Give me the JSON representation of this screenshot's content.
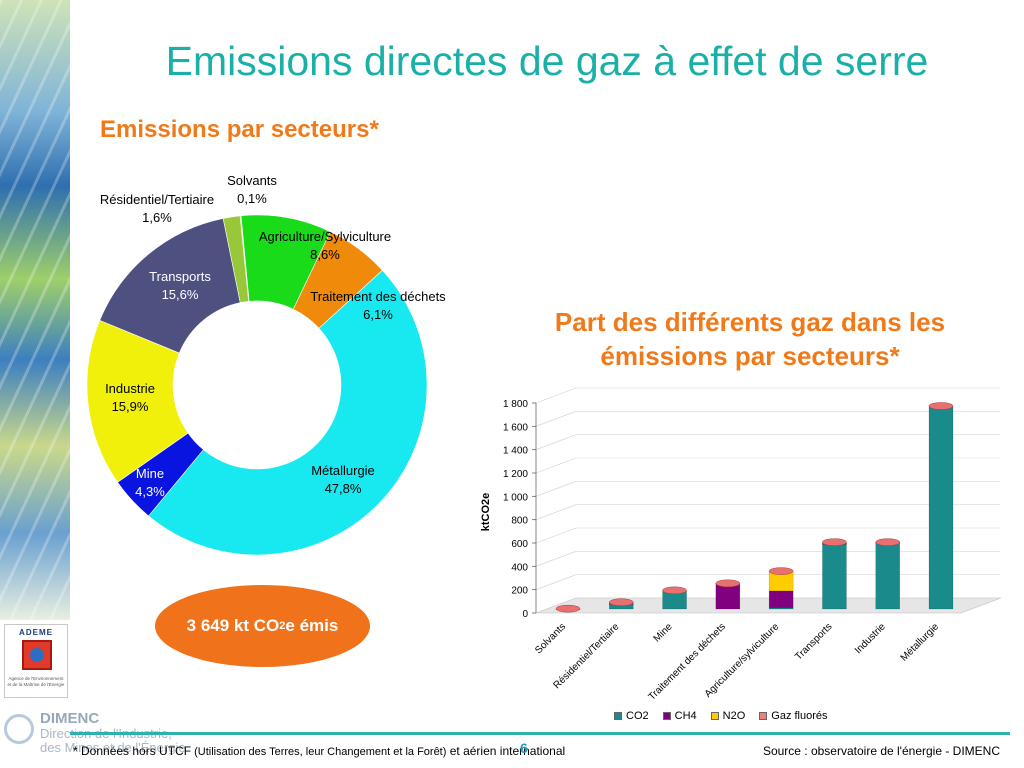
{
  "title": "Emissions directes de gaz à effet de serre",
  "pie_section": {
    "title": "Emissions par secteurs*"
  },
  "bar_section": {
    "title_line1": "Part des différents gaz dans les",
    "title_line2": "émissions par secteurs*"
  },
  "total": {
    "prefix": "3 649 kt CO",
    "sub": "2",
    "suffix": "e émis"
  },
  "footnote": {
    "star": "* Données hors UTCF",
    "small": " (Utilisation des Terres, leur Changement et la Forêt)",
    "rest": " et aérien international"
  },
  "page_number": "6",
  "source": "Source : observatoire de l'énergie - DIMENC",
  "logos": {
    "ademe_title": "ADEME",
    "ademe_sub": "Agence de l'Environnement et de la Maîtrise de l'Énergie",
    "dimenc_name": "DIMENC",
    "dimenc_line1": "Direction de l'Industrie,",
    "dimenc_line2": "des Mines et de l'Énergie"
  },
  "chart_data": [
    {
      "type": "pie",
      "title": "Emissions par secteurs*",
      "donut": true,
      "slices": [
        {
          "label": "Solvants",
          "value": 0.1,
          "value_label": "0,1%",
          "color": "#b8d45a"
        },
        {
          "label": "Agriculture/Sylviculture",
          "value": 8.6,
          "value_label": "8,6%",
          "color": "#1adb1a"
        },
        {
          "label": "Traitement des déchets",
          "value": 6.1,
          "value_label": "6,1%",
          "color": "#f08a0a"
        },
        {
          "label": "Métallurgie",
          "value": 47.8,
          "value_label": "47,8%",
          "color": "#18e8f0"
        },
        {
          "label": "Mine",
          "value": 4.3,
          "value_label": "4,3%",
          "color": "#0a14e0"
        },
        {
          "label": "Industrie",
          "value": 15.9,
          "value_label": "15,9%",
          "color": "#f0f00a"
        },
        {
          "label": "Transports",
          "value": 15.6,
          "value_label": "15,6%",
          "color": "#4e5080"
        },
        {
          "label": "Résidentiel/Tertiaire",
          "value": 1.6,
          "value_label": "1,6%",
          "color": "#98c83a"
        }
      ]
    },
    {
      "type": "bar",
      "title": "Part des différents gaz dans les émissions par secteurs*",
      "stacked": true,
      "categories": [
        "Solvants",
        "Résidentiel/Tertiaire",
        "Mine",
        "Traitement des déchets",
        "Agriculture/sylviculture",
        "Transports",
        "Industrie",
        "Métallurgie"
      ],
      "ylabel": "ktCO2e",
      "ylim": [
        0,
        1800
      ],
      "yticks": [
        "0",
        "200",
        "400",
        "600",
        "800",
        "1 000",
        "1 200",
        "1 400",
        "1 600",
        "1 800"
      ],
      "series": [
        {
          "name": "CO2",
          "color": "#1a8a8a",
          "values": [
            3,
            40,
            160,
            0,
            10,
            560,
            570,
            1740
          ]
        },
        {
          "name": "CH4",
          "color": "#800080",
          "values": [
            0,
            10,
            0,
            220,
            145,
            3,
            3,
            0
          ]
        },
        {
          "name": "N2O",
          "color": "#ffcc00",
          "values": [
            0,
            5,
            0,
            0,
            170,
            10,
            0,
            0
          ]
        },
        {
          "name": "Gaz fluorés",
          "color": "#f08080",
          "values": [
            0,
            3,
            0,
            0,
            0,
            0,
            0,
            0
          ]
        }
      ]
    }
  ]
}
